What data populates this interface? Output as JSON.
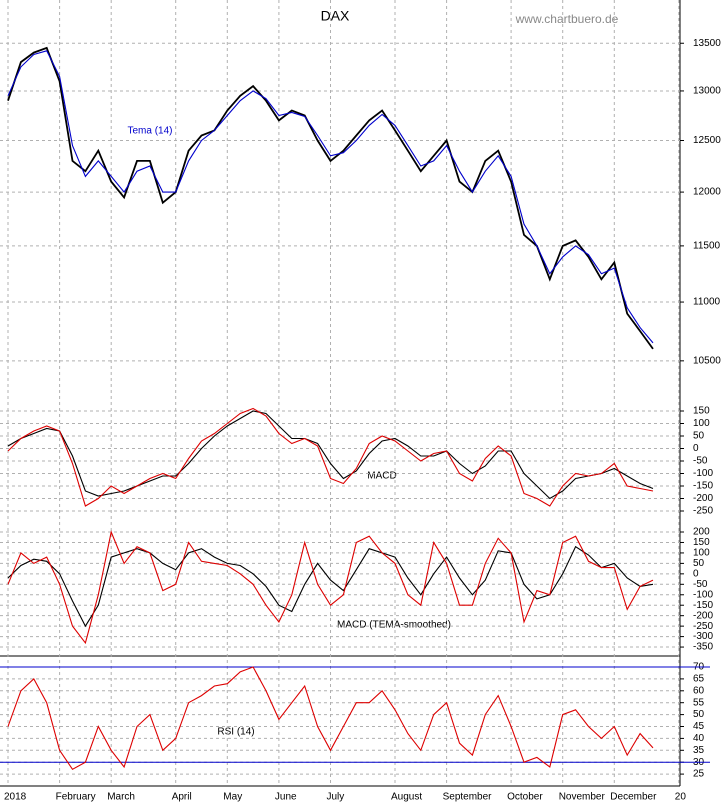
{
  "chart_data": [
    {
      "type": "line",
      "title": "DAX",
      "source": "www.chartbuero.de",
      "log": true,
      "grid": true,
      "categories": [
        "2018",
        null,
        null,
        null,
        "February",
        null,
        null,
        null,
        "March",
        null,
        null,
        null,
        null,
        "April",
        null,
        null,
        null,
        "May",
        null,
        null,
        null,
        "June",
        null,
        null,
        null,
        "July",
        null,
        null,
        null,
        null,
        "August",
        null,
        null,
        null,
        "September",
        null,
        null,
        null,
        null,
        "October",
        null,
        null,
        null,
        "November",
        null,
        null,
        null,
        "December",
        null,
        null,
        null,
        null,
        "20"
      ],
      "ylim": [
        10220,
        13970
      ],
      "yticks": [
        10500,
        11000,
        11500,
        12000,
        12500,
        13000,
        13500
      ],
      "series": [
        {
          "color": "#000000",
          "values": [
            12900,
            13300,
            13400,
            13450,
            13100,
            12300,
            12200,
            12400,
            12100,
            11950,
            12300,
            12300,
            11900,
            12000,
            12400,
            12550,
            12600,
            12800,
            12950,
            13050,
            12900,
            12700,
            12800,
            12750,
            12500,
            12300,
            12400,
            12550,
            12700,
            12800,
            12600,
            12400,
            12200,
            12350,
            12500,
            12100,
            12000,
            12300,
            12400,
            12100,
            11600,
            11500,
            11200,
            11500,
            11550,
            11400,
            11200,
            11350,
            10900,
            10750,
            10600,
            null,
            null
          ]
        },
        {
          "name": "Tema (14)",
          "color": "#0000cc",
          "values": [
            12950,
            13250,
            13380,
            13420,
            13150,
            12450,
            12150,
            12300,
            12150,
            12000,
            12200,
            12250,
            12000,
            12000,
            12300,
            12500,
            12600,
            12750,
            12900,
            13000,
            12920,
            12750,
            12780,
            12740,
            12550,
            12350,
            12380,
            12500,
            12650,
            12760,
            12650,
            12450,
            12250,
            12300,
            12450,
            12200,
            12000,
            12200,
            12350,
            12150,
            11700,
            11500,
            11250,
            11400,
            11500,
            11420,
            11250,
            11300,
            10950,
            10780,
            10650,
            null,
            null
          ]
        }
      ]
    },
    {
      "type": "line",
      "title": "MACD",
      "grid": true,
      "ylim": [
        -278,
        202
      ],
      "yticks": [
        -250,
        -200,
        -150,
        -100,
        -50,
        0,
        50,
        100,
        150
      ],
      "series": [
        {
          "color": "#000000",
          "values": [
            10,
            40,
            60,
            80,
            70,
            -30,
            -170,
            -190,
            -180,
            -170,
            -150,
            -130,
            -110,
            -110,
            -60,
            0,
            50,
            90,
            120,
            150,
            140,
            90,
            40,
            40,
            20,
            -60,
            -120,
            -90,
            -20,
            30,
            40,
            10,
            -30,
            -30,
            -10,
            -60,
            -100,
            -70,
            -10,
            -10,
            -100,
            -150,
            -200,
            -170,
            -120,
            -110,
            -100,
            -80,
            -110,
            -140,
            -160,
            null,
            null
          ]
        },
        {
          "color": "#dd0000",
          "values": [
            -10,
            40,
            70,
            90,
            70,
            -60,
            -230,
            -200,
            -150,
            -180,
            -150,
            -120,
            -100,
            -120,
            -40,
            30,
            60,
            100,
            140,
            160,
            130,
            60,
            20,
            40,
            10,
            -120,
            -140,
            -80,
            20,
            50,
            30,
            -10,
            -50,
            -20,
            -10,
            -100,
            -130,
            -40,
            10,
            -30,
            -180,
            -200,
            -230,
            -150,
            -100,
            -110,
            -100,
            -60,
            -150,
            -160,
            -170,
            null,
            null
          ]
        }
      ]
    },
    {
      "type": "line",
      "title": "MACD (TEMA-smoothed)",
      "grid": true,
      "ylim": [
        -388,
        267
      ],
      "yticks": [
        -350,
        -300,
        -250,
        -200,
        -150,
        -100,
        -50,
        0,
        50,
        100,
        150,
        200
      ],
      "series": [
        {
          "color": "#000000",
          "values": [
            -20,
            40,
            70,
            60,
            0,
            -130,
            -250,
            -150,
            80,
            100,
            120,
            100,
            50,
            20,
            100,
            120,
            80,
            50,
            40,
            0,
            -60,
            -150,
            -180,
            -50,
            50,
            -30,
            -80,
            20,
            120,
            100,
            80,
            -20,
            -100,
            0,
            80,
            -20,
            -100,
            -30,
            110,
            100,
            -50,
            -120,
            -100,
            0,
            130,
            90,
            30,
            50,
            -20,
            -60,
            -50,
            null,
            null
          ]
        },
        {
          "color": "#dd0000",
          "values": [
            -50,
            100,
            50,
            80,
            -50,
            -250,
            -330,
            -100,
            200,
            50,
            130,
            100,
            -80,
            -50,
            150,
            60,
            50,
            40,
            0,
            -50,
            -150,
            -230,
            -100,
            150,
            -50,
            -150,
            -100,
            150,
            180,
            100,
            50,
            -100,
            -150,
            150,
            50,
            -150,
            -150,
            50,
            170,
            100,
            -230,
            -80,
            -100,
            150,
            180,
            60,
            30,
            30,
            -170,
            -60,
            -30,
            null,
            null
          ]
        }
      ]
    },
    {
      "type": "line",
      "title": "RSI (14)",
      "grid": true,
      "ylim": [
        20,
        74.2
      ],
      "yticks": [
        25,
        30,
        35,
        40,
        45,
        50,
        55,
        60,
        65,
        70
      ],
      "reference_lines": [
        70,
        30
      ],
      "reference_color": "#0000cc",
      "series": [
        {
          "color": "#dd0000",
          "values": [
            45,
            60,
            65,
            55,
            35,
            27,
            30,
            45,
            35,
            28,
            45,
            50,
            35,
            40,
            55,
            58,
            62,
            63,
            68,
            70,
            60,
            48,
            55,
            62,
            45,
            35,
            45,
            55,
            55,
            60,
            52,
            42,
            35,
            50,
            55,
            38,
            33,
            50,
            58,
            45,
            30,
            32,
            28,
            50,
            52,
            45,
            40,
            45,
            33,
            42,
            36,
            null,
            null
          ]
        }
      ]
    }
  ]
}
